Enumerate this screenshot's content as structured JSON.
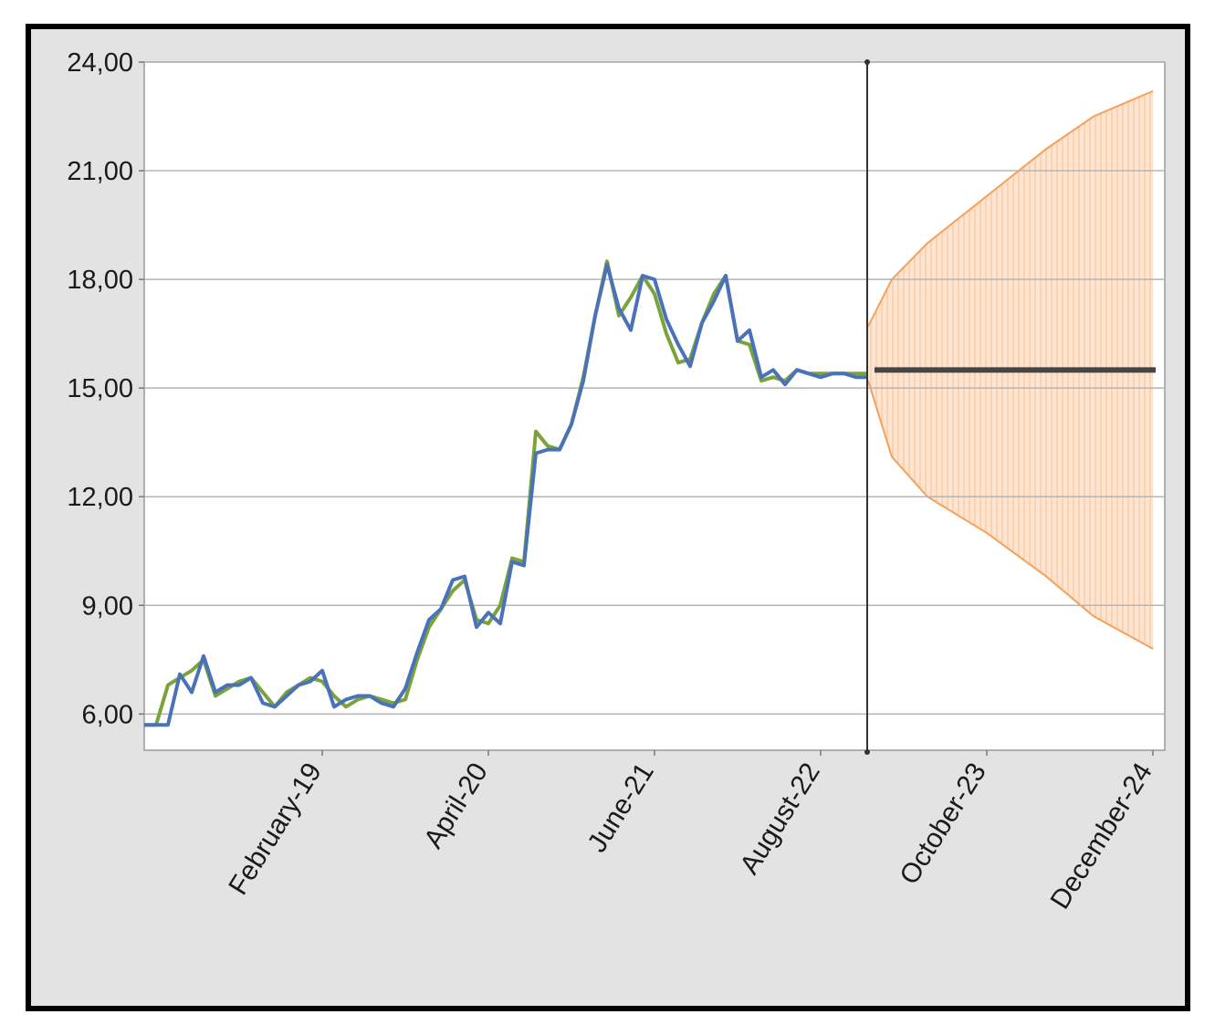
{
  "chart_data": {
    "type": "line",
    "title": "",
    "xlabel": "",
    "ylabel": "",
    "ylim": [
      5.0,
      24.0
    ],
    "y_ticks": [
      "6,00",
      "9,00",
      "12,00",
      "15,00",
      "18,00",
      "21,00",
      "24,00"
    ],
    "y_tick_values": [
      6,
      9,
      12,
      15,
      18,
      21,
      24
    ],
    "x_range_months": [
      "2017-11",
      "2025-01"
    ],
    "x_ticks": [
      {
        "label": "February-19",
        "date": "2019-02"
      },
      {
        "label": "April-20",
        "date": "2020-04"
      },
      {
        "label": "June-21",
        "date": "2021-06"
      },
      {
        "label": "August-22",
        "date": "2022-08"
      },
      {
        "label": "October-23",
        "date": "2023-10"
      },
      {
        "label": "December-24",
        "date": "2024-12"
      }
    ],
    "forecast_start": "2022-12",
    "grid": true,
    "legend": "none",
    "series": [
      {
        "color": "#7aa33a",
        "x": [
          "2017-11",
          "2017-12",
          "2018-01",
          "2018-02",
          "2018-03",
          "2018-04",
          "2018-05",
          "2018-06",
          "2018-07",
          "2018-08",
          "2018-09",
          "2018-10",
          "2018-11",
          "2018-12",
          "2019-01",
          "2019-02",
          "2019-03",
          "2019-04",
          "2019-05",
          "2019-06",
          "2019-07",
          "2019-08",
          "2019-09",
          "2019-10",
          "2019-11",
          "2019-12",
          "2020-01",
          "2020-02",
          "2020-03",
          "2020-04",
          "2020-05",
          "2020-06",
          "2020-07",
          "2020-08",
          "2020-09",
          "2020-10",
          "2020-11",
          "2020-12",
          "2021-01",
          "2021-02",
          "2021-03",
          "2021-04",
          "2021-05",
          "2021-06",
          "2021-07",
          "2021-08",
          "2021-09",
          "2021-10",
          "2021-11",
          "2021-12",
          "2022-01",
          "2022-02",
          "2022-03",
          "2022-04",
          "2022-05",
          "2022-06",
          "2022-07",
          "2022-08",
          "2022-09",
          "2022-10",
          "2022-11",
          "2022-12"
        ],
        "y": [
          5.7,
          5.7,
          6.8,
          7.0,
          7.2,
          7.5,
          6.5,
          6.7,
          6.9,
          7.0,
          6.6,
          6.2,
          6.6,
          6.8,
          7.0,
          6.9,
          6.5,
          6.2,
          6.4,
          6.5,
          6.4,
          6.3,
          6.4,
          7.5,
          8.4,
          8.9,
          9.4,
          9.7,
          8.6,
          8.5,
          9.0,
          10.3,
          10.2,
          13.8,
          13.4,
          13.3,
          14.0,
          15.3,
          17.0,
          18.5,
          17.0,
          17.5,
          18.1,
          17.6,
          16.5,
          15.7,
          15.8,
          16.8,
          17.6,
          18.1,
          16.3,
          16.2,
          15.2,
          15.3,
          15.2,
          15.5,
          15.4,
          15.4,
          15.4,
          15.4,
          15.4,
          15.4
        ]
      },
      {
        "color": "#4a72b8",
        "x": [
          "2017-11",
          "2017-12",
          "2018-01",
          "2018-02",
          "2018-03",
          "2018-04",
          "2018-05",
          "2018-06",
          "2018-07",
          "2018-08",
          "2018-09",
          "2018-10",
          "2018-11",
          "2018-12",
          "2019-01",
          "2019-02",
          "2019-03",
          "2019-04",
          "2019-05",
          "2019-06",
          "2019-07",
          "2019-08",
          "2019-09",
          "2019-10",
          "2019-11",
          "2019-12",
          "2020-01",
          "2020-02",
          "2020-03",
          "2020-04",
          "2020-05",
          "2020-06",
          "2020-07",
          "2020-08",
          "2020-09",
          "2020-10",
          "2020-11",
          "2020-12",
          "2021-01",
          "2021-02",
          "2021-03",
          "2021-04",
          "2021-05",
          "2021-06",
          "2021-07",
          "2021-08",
          "2021-09",
          "2021-10",
          "2021-11",
          "2021-12",
          "2022-01",
          "2022-02",
          "2022-03",
          "2022-04",
          "2022-05",
          "2022-06",
          "2022-07",
          "2022-08",
          "2022-09",
          "2022-10",
          "2022-11",
          "2022-12"
        ],
        "y": [
          5.7,
          5.7,
          5.7,
          7.1,
          6.6,
          7.6,
          6.6,
          6.8,
          6.8,
          7.0,
          6.3,
          6.2,
          6.5,
          6.8,
          6.9,
          7.2,
          6.2,
          6.4,
          6.5,
          6.5,
          6.3,
          6.2,
          6.7,
          7.7,
          8.6,
          8.9,
          9.7,
          9.8,
          8.4,
          8.8,
          8.5,
          10.2,
          10.1,
          13.2,
          13.3,
          13.3,
          14.0,
          15.2,
          17.0,
          18.4,
          17.2,
          16.6,
          18.1,
          18.0,
          16.9,
          16.2,
          15.6,
          16.8,
          17.4,
          18.1,
          16.3,
          16.6,
          15.3,
          15.5,
          15.1,
          15.5,
          15.4,
          15.3,
          15.4,
          15.4,
          15.3,
          15.3
        ]
      }
    ],
    "forecast": {
      "median": 15.5,
      "median_color": "#444444",
      "band_color": "#f7a05a",
      "lower": [
        {
          "x": "2022-12",
          "y": 15.2
        },
        {
          "x": "2023-02",
          "y": 13.1
        },
        {
          "x": "2023-05",
          "y": 12.0
        },
        {
          "x": "2023-10",
          "y": 11.0
        },
        {
          "x": "2024-03",
          "y": 9.8
        },
        {
          "x": "2024-07",
          "y": 8.7
        },
        {
          "x": "2024-12",
          "y": 7.8
        }
      ],
      "upper": [
        {
          "x": "2022-12",
          "y": 16.7
        },
        {
          "x": "2023-02",
          "y": 18.0
        },
        {
          "x": "2023-05",
          "y": 19.0
        },
        {
          "x": "2023-10",
          "y": 20.3
        },
        {
          "x": "2024-03",
          "y": 21.6
        },
        {
          "x": "2024-07",
          "y": 22.5
        },
        {
          "x": "2024-12",
          "y": 23.2
        }
      ]
    }
  }
}
